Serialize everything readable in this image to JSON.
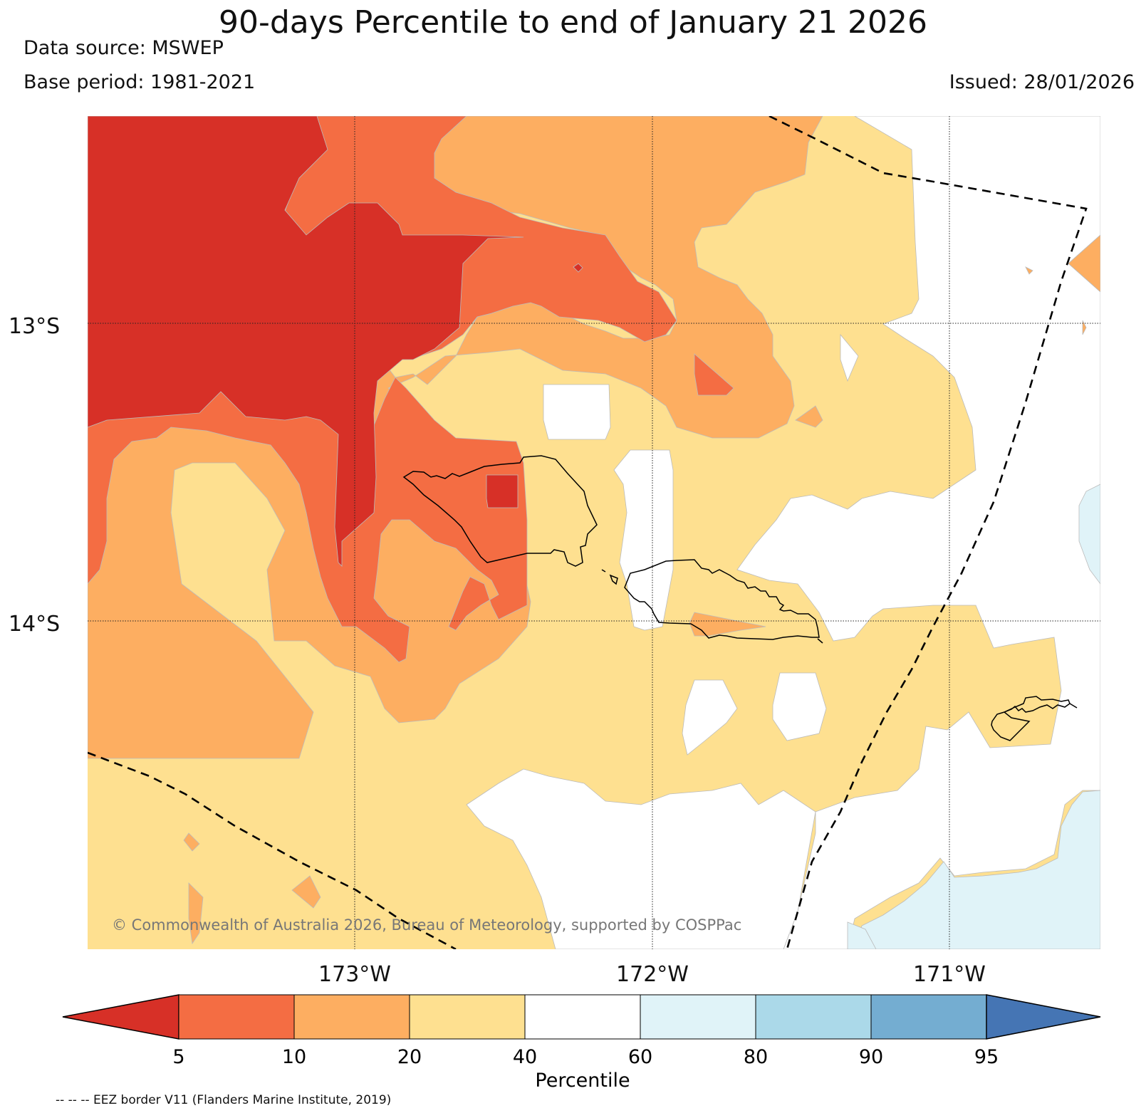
{
  "title": "90-days Percentile to end of January 21 2026",
  "data_source": "Data source: MSWEP",
  "base_period": "Base period: 1981-2021",
  "issued": "Issued: 28/01/2026",
  "copyright": "© Commonwealth of Australia 2026, Bureau of Meteorology, supported by COSPPac",
  "map": {
    "lat_labels": [
      "13°S",
      "14°S"
    ],
    "lon_labels": [
      "173°W",
      "172°W",
      "171°W"
    ]
  },
  "colorbar": {
    "label": "Percentile",
    "ticks": [
      "5",
      "10",
      "20",
      "40",
      "60",
      "80",
      "90",
      "95"
    ],
    "colors": [
      "#d73027",
      "#f46d43",
      "#fdae61",
      "#fee090",
      "#ffffff",
      "#e0f3f8",
      "#abd9e9",
      "#74add1",
      "#4575b4"
    ]
  },
  "footnote": "-- -- -- EEZ border V11 (Flanders Marine Institute, 2019)"
}
